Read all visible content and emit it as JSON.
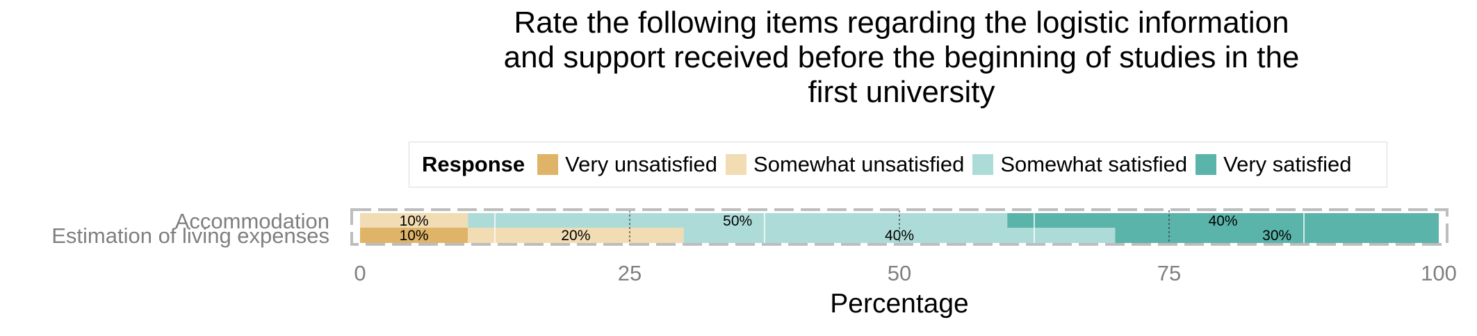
{
  "chart_data": {
    "type": "bar",
    "orientation": "horizontal",
    "stacked": true,
    "title": "Rate the following items regarding the logistic information\nand support received before the beginning of studies in the\nfirst university",
    "xlabel": "Percentage",
    "ylabel": "",
    "xlim": [
      0,
      100
    ],
    "xticks": [
      "0",
      "25",
      "50",
      "75",
      "100"
    ],
    "grid": true,
    "legend_title": "Response",
    "legend_position": "top",
    "categories": [
      "Accommodation",
      "Estimation of living expenses"
    ],
    "series": [
      {
        "name": "Very unsatisfied",
        "color": "#dfb469",
        "values": [
          0,
          10
        ]
      },
      {
        "name": "Somewhat unsatisfied",
        "color": "#f1dcb4",
        "values": [
          10,
          20
        ]
      },
      {
        "name": "Somewhat satisfied",
        "color": "#addcd8",
        "values": [
          50,
          40
        ]
      },
      {
        "name": "Very satisfied",
        "color": "#5ab4aa",
        "values": [
          40,
          30
        ]
      }
    ],
    "data_labels": [
      [
        "",
        "10%",
        "50%",
        "40%"
      ],
      [
        "10%",
        "20%",
        "40%",
        "30%"
      ]
    ]
  }
}
